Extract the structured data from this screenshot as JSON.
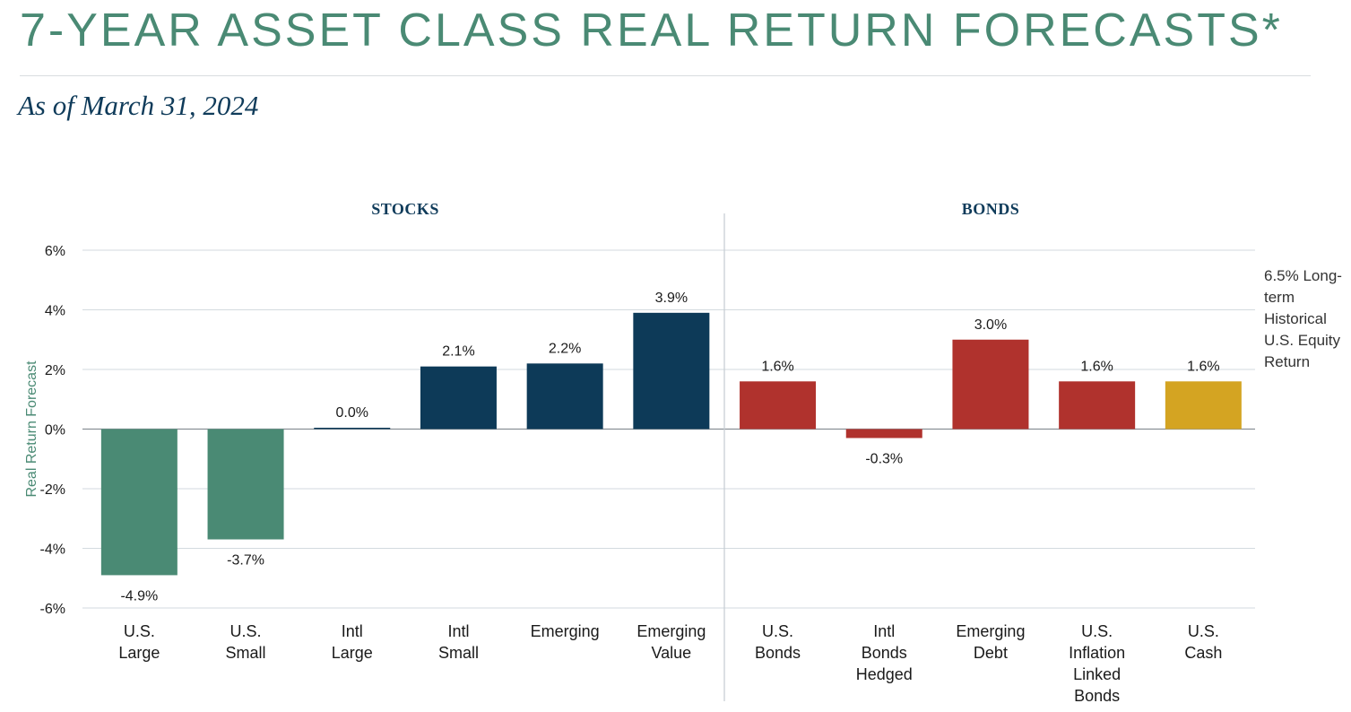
{
  "header": {
    "title": "7-YEAR ASSET CLASS REAL RETURN FORECASTS*",
    "subtitle": "As of March 31, 2024"
  },
  "annotation": "6.5% Long-term Historical U.S. Equity Return",
  "colors": {
    "us_equity": "#4a8a74",
    "intl_equity": "#0d3a58",
    "bonds": "#b0322d",
    "cash": "#d4a422",
    "title": "#4a8a74",
    "heading": "#0f3b5a"
  },
  "chart_data": {
    "type": "bar",
    "title": "7-YEAR ASSET CLASS REAL RETURN FORECASTS*",
    "subtitle": "As of March 31, 2024",
    "ylabel": "Real Return Forecast",
    "xlabel": "",
    "ylim": [
      -6,
      6
    ],
    "yticks": [
      "6%",
      "4%",
      "2%",
      "0%",
      "-2%",
      "-4%",
      "-6%"
    ],
    "ytick_values": [
      6,
      4,
      2,
      0,
      -2,
      -4,
      -6
    ],
    "grid": true,
    "groups": [
      {
        "label": "STOCKS",
        "categories": [
          0,
          1,
          2,
          3,
          4,
          5
        ]
      },
      {
        "label": "BONDS",
        "categories": [
          6,
          7,
          8,
          9,
          10
        ]
      }
    ],
    "categories": [
      [
        "U.S.",
        "Large"
      ],
      [
        "U.S.",
        "Small"
      ],
      [
        "Intl",
        "Large"
      ],
      [
        "Intl",
        "Small"
      ],
      [
        "Emerging"
      ],
      [
        "Emerging",
        "Value"
      ],
      [
        "U.S.",
        "Bonds"
      ],
      [
        "Intl",
        "Bonds",
        "Hedged"
      ],
      [
        "Emerging",
        "Debt"
      ],
      [
        "U.S.",
        "Inflation",
        "Linked",
        "Bonds"
      ],
      [
        "U.S.",
        "Cash"
      ]
    ],
    "values": [
      -4.9,
      -3.7,
      0.0,
      2.1,
      2.2,
      3.9,
      1.6,
      -0.3,
      3.0,
      1.6,
      1.6
    ],
    "value_labels": [
      "-4.9%",
      "-3.7%",
      "0.0%",
      "2.1%",
      "2.2%",
      "3.9%",
      "1.6%",
      "-0.3%",
      "3.0%",
      "1.6%",
      "1.6%"
    ],
    "bar_colors": [
      "#4a8a74",
      "#4a8a74",
      "#0d3a58",
      "#0d3a58",
      "#0d3a58",
      "#0d3a58",
      "#b0322d",
      "#b0322d",
      "#b0322d",
      "#b0322d",
      "#d4a422"
    ],
    "annotation": "6.5% Long-term Historical U.S. Equity Return"
  }
}
